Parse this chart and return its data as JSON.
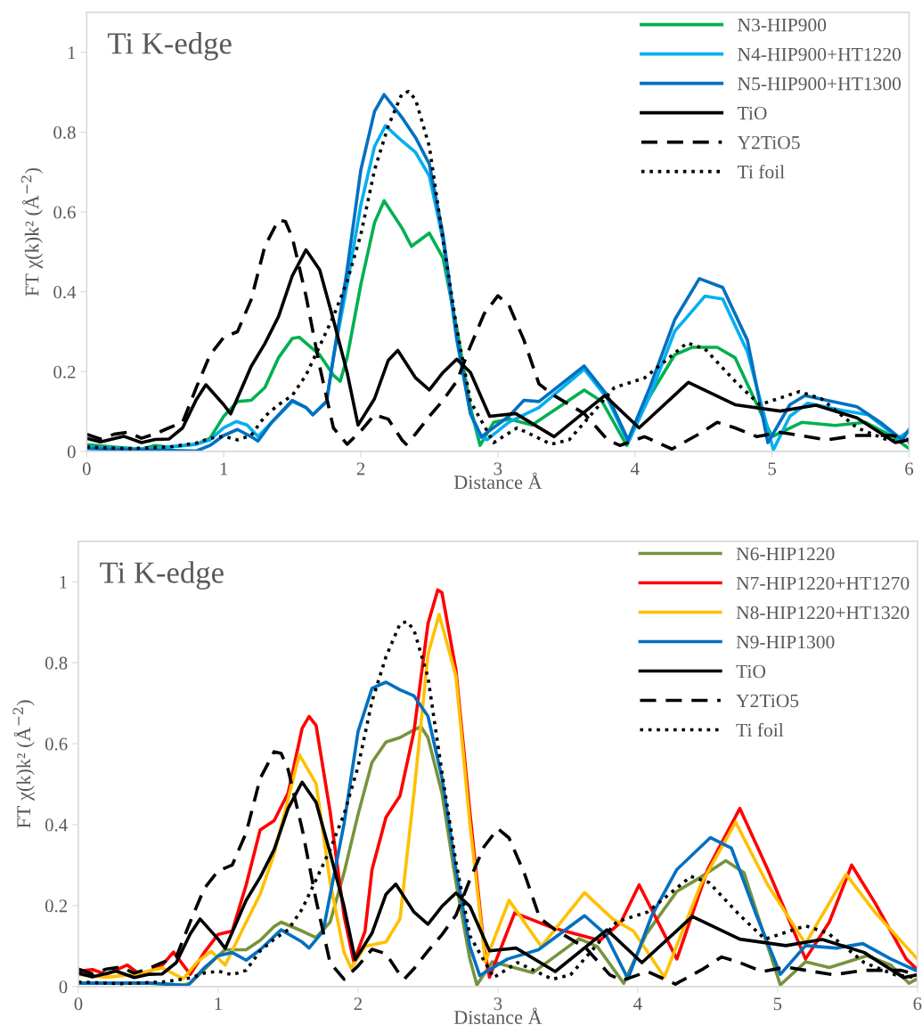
{
  "chart_data": [
    {
      "type": "line",
      "title": "Ti K-edge",
      "xlabel": "Distance Å",
      "ylabel": "FT χ(k)k² (Å$^{−2}$)",
      "xlim": [
        0,
        6
      ],
      "ylim": [
        0,
        1.1
      ],
      "xticks": [
        0,
        1,
        2,
        3,
        4,
        5,
        6
      ],
      "yticks": [
        0,
        0.2,
        0.4,
        0.6,
        0.8,
        1
      ],
      "legend": "top right",
      "grid": false,
      "series": [
        {
          "name": "N3-HIP900",
          "color": "#00b050",
          "line_style": "solid",
          "x": [
            0,
            0.2,
            0.4,
            0.5,
            0.6,
            0.8,
            0.9,
            1.0,
            1.1,
            1.2,
            1.3,
            1.4,
            1.5,
            1.55,
            1.7,
            1.8,
            1.85,
            1.9,
            2.0,
            2.1,
            2.17,
            2.3,
            2.37,
            2.5,
            2.6,
            2.7,
            2.8,
            2.87,
            2.97,
            3.08,
            3.25,
            3.41,
            3.63,
            3.76,
            3.94,
            4.07,
            4.29,
            4.42,
            4.6,
            4.73,
            4.87,
            5.0,
            5.22,
            5.46,
            5.68,
            5.88,
            6.0
          ],
          "values": [
            0.017,
            0.011,
            0.006,
            0.015,
            0.011,
            0.018,
            0.033,
            0.088,
            0.125,
            0.128,
            0.16,
            0.235,
            0.283,
            0.286,
            0.242,
            0.191,
            0.176,
            0.235,
            0.418,
            0.573,
            0.628,
            0.56,
            0.514,
            0.547,
            0.485,
            0.308,
            0.11,
            0.015,
            0.073,
            0.081,
            0.066,
            0.103,
            0.154,
            0.125,
            0.015,
            0.117,
            0.242,
            0.261,
            0.261,
            0.235,
            0.132,
            0.037,
            0.073,
            0.065,
            0.073,
            0.037,
            0.007
          ]
        },
        {
          "name": "N4-HIP900+HT1220",
          "color": "#00b0f0",
          "line_style": "solid",
          "x": [
            0,
            0.4,
            0.6,
            0.8,
            0.9,
            1.0,
            1.09,
            1.17,
            1.25,
            1.35,
            1.5,
            1.6,
            1.65,
            1.75,
            1.8,
            1.9,
            2.0,
            2.1,
            2.18,
            2.3,
            2.4,
            2.5,
            2.6,
            2.7,
            2.8,
            2.87,
            2.92,
            3.08,
            3.3,
            3.63,
            3.8,
            3.95,
            4.11,
            4.29,
            4.51,
            4.64,
            4.82,
            5.01,
            5.13,
            5.26,
            5.51,
            5.7,
            5.92,
            6.0
          ],
          "values": [
            0.011,
            0.006,
            0.011,
            0.018,
            0.029,
            0.059,
            0.075,
            0.066,
            0.037,
            0.073,
            0.125,
            0.11,
            0.092,
            0.125,
            0.235,
            0.418,
            0.617,
            0.764,
            0.816,
            0.778,
            0.749,
            0.69,
            0.529,
            0.279,
            0.095,
            0.037,
            0.029,
            0.073,
            0.11,
            0.206,
            0.132,
            0.022,
            0.14,
            0.301,
            0.389,
            0.382,
            0.25,
            0.004,
            0.088,
            0.121,
            0.103,
            0.092,
            0.033,
            0.051
          ]
        },
        {
          "name": "N5-HIP900+HT1300",
          "color": "#0070c0",
          "line_style": "solid",
          "x": [
            0,
            0.4,
            0.8,
            0.9,
            1.0,
            1.1,
            1.2,
            1.25,
            1.35,
            1.5,
            1.6,
            1.65,
            1.75,
            1.8,
            1.9,
            2.0,
            2.1,
            2.17,
            2.3,
            2.4,
            2.5,
            2.6,
            2.7,
            2.8,
            2.88,
            3.08,
            3.19,
            3.3,
            3.63,
            3.8,
            3.95,
            4.11,
            4.29,
            4.47,
            4.64,
            4.82,
            4.97,
            5.13,
            5.24,
            5.62,
            5.79,
            5.95,
            6.0
          ],
          "values": [
            0.007,
            0.004,
            0.001,
            0.015,
            0.04,
            0.055,
            0.037,
            0.026,
            0.073,
            0.128,
            0.11,
            0.092,
            0.125,
            0.235,
            0.455,
            0.705,
            0.852,
            0.894,
            0.837,
            0.786,
            0.72,
            0.543,
            0.286,
            0.095,
            0.037,
            0.088,
            0.128,
            0.125,
            0.214,
            0.14,
            0.029,
            0.162,
            0.33,
            0.433,
            0.411,
            0.279,
            0.022,
            0.117,
            0.14,
            0.112,
            0.073,
            0.029,
            0.055
          ]
        },
        {
          "name": "TiO",
          "color": "#000000",
          "line_style": "solid",
          "x": [
            0,
            0.1,
            0.27,
            0.4,
            0.5,
            0.6,
            0.7,
            0.8,
            0.87,
            1.0,
            1.05,
            1.2,
            1.3,
            1.4,
            1.5,
            1.6,
            1.7,
            1.8,
            1.9,
            1.98,
            2.1,
            2.2,
            2.27,
            2.4,
            2.5,
            2.6,
            2.7,
            2.8,
            2.94,
            3.13,
            3.41,
            3.78,
            4.03,
            4.39,
            4.73,
            5.06,
            5.32,
            5.62,
            5.9,
            6.0
          ],
          "values": [
            0.033,
            0.024,
            0.038,
            0.022,
            0.03,
            0.031,
            0.059,
            0.13,
            0.167,
            0.117,
            0.094,
            0.213,
            0.27,
            0.338,
            0.44,
            0.505,
            0.455,
            0.33,
            0.198,
            0.066,
            0.132,
            0.228,
            0.253,
            0.184,
            0.154,
            0.198,
            0.231,
            0.198,
            0.088,
            0.095,
            0.037,
            0.14,
            0.059,
            0.173,
            0.117,
            0.101,
            0.116,
            0.084,
            0.022,
            0.029
          ]
        },
        {
          "name": "Y2TiO5",
          "color": "#000000",
          "line_style": "dashed",
          "x": [
            0,
            0.1,
            0.2,
            0.3,
            0.4,
            0.5,
            0.6,
            0.7,
            0.8,
            0.9,
            1.0,
            1.1,
            1.2,
            1.3,
            1.4,
            1.45,
            1.5,
            1.6,
            1.7,
            1.8,
            1.9,
            2.0,
            2.1,
            2.2,
            2.3,
            2.33,
            2.4,
            2.5,
            2.6,
            2.7,
            2.8,
            2.9,
            3.0,
            3.08,
            3.19,
            3.3,
            3.41,
            3.63,
            3.8,
            3.89,
            4.07,
            4.27,
            4.47,
            4.6,
            4.73,
            4.89,
            5.06,
            5.4,
            5.62,
            5.88,
            6.0
          ],
          "values": [
            0.043,
            0.031,
            0.043,
            0.048,
            0.033,
            0.044,
            0.059,
            0.073,
            0.16,
            0.242,
            0.286,
            0.3,
            0.38,
            0.514,
            0.58,
            0.576,
            0.536,
            0.39,
            0.213,
            0.059,
            0.018,
            0.051,
            0.092,
            0.081,
            0.029,
            0.018,
            0.044,
            0.088,
            0.128,
            0.176,
            0.264,
            0.345,
            0.39,
            0.367,
            0.279,
            0.169,
            0.14,
            0.095,
            0.029,
            0.015,
            0.037,
            0.006,
            0.044,
            0.073,
            0.059,
            0.037,
            0.048,
            0.029,
            0.04,
            0.04,
            0.029
          ]
        },
        {
          "name": "Ti foil",
          "color": "#000000",
          "line_style": "dotted",
          "x": [
            0,
            0.3,
            0.6,
            0.8,
            0.9,
            1.0,
            1.1,
            1.2,
            1.3,
            1.4,
            1.5,
            1.6,
            1.7,
            1.8,
            1.9,
            2.0,
            2.1,
            2.2,
            2.3,
            2.35,
            2.4,
            2.5,
            2.6,
            2.7,
            2.8,
            2.97,
            3.14,
            3.39,
            3.52,
            3.67,
            3.85,
            4.07,
            4.25,
            4.38,
            4.51,
            4.73,
            4.91,
            5.2,
            5.36,
            5.62,
            5.84,
            6.0
          ],
          "values": [
            0.011,
            0.007,
            0.011,
            0.021,
            0.033,
            0.038,
            0.029,
            0.04,
            0.088,
            0.117,
            0.14,
            0.191,
            0.264,
            0.338,
            0.426,
            0.543,
            0.705,
            0.815,
            0.896,
            0.902,
            0.881,
            0.764,
            0.529,
            0.308,
            0.125,
            0.022,
            0.059,
            0.018,
            0.029,
            0.088,
            0.16,
            0.184,
            0.235,
            0.272,
            0.257,
            0.176,
            0.117,
            0.15,
            0.132,
            0.059,
            0.029,
            0.022
          ]
        }
      ]
    },
    {
      "type": "line",
      "title": "Ti K-edge",
      "xlabel": "Distance Å",
      "ylabel": "FT χ(k)k² (Å$^{−2}$)",
      "xlim": [
        0,
        6
      ],
      "ylim": [
        0,
        1.1
      ],
      "xticks": [
        0,
        1,
        2,
        3,
        4,
        5,
        6
      ],
      "yticks": [
        0,
        0.2,
        0.4,
        0.6,
        0.8,
        1
      ],
      "legend": "top right",
      "grid": false,
      "series": [
        {
          "name": "N6-HIP1220",
          "color": "#77933c",
          "line_style": "solid",
          "x": [
            0,
            0.5,
            0.75,
            0.8,
            0.9,
            1.0,
            1.05,
            1.2,
            1.3,
            1.4,
            1.45,
            1.6,
            1.7,
            1.8,
            1.9,
            2.0,
            2.1,
            2.2,
            2.3,
            2.4,
            2.45,
            2.5,
            2.6,
            2.7,
            2.8,
            2.85,
            2.96,
            3.25,
            3.58,
            3.71,
            3.9,
            4.06,
            4.28,
            4.45,
            4.63,
            4.76,
            4.93,
            5.02,
            5.2,
            5.37,
            5.64,
            5.81,
            5.94,
            6.0
          ],
          "values": [
            0.008,
            0.008,
            0.004,
            0.008,
            0.042,
            0.076,
            0.091,
            0.091,
            0.114,
            0.148,
            0.159,
            0.137,
            0.121,
            0.159,
            0.281,
            0.425,
            0.554,
            0.604,
            0.615,
            0.634,
            0.642,
            0.615,
            0.478,
            0.258,
            0.068,
            0.004,
            0.061,
            0.034,
            0.118,
            0.099,
            0.008,
            0.129,
            0.235,
            0.27,
            0.311,
            0.281,
            0.099,
            0.004,
            0.061,
            0.047,
            0.076,
            0.053,
            0.008,
            0.019
          ]
        },
        {
          "name": "N7-HIP1220+HT1270",
          "color": "#ff0000",
          "line_style": "solid",
          "x": [
            0,
            0.1,
            0.2,
            0.35,
            0.45,
            0.6,
            0.68,
            0.8,
            0.9,
            1.0,
            1.1,
            1.2,
            1.3,
            1.4,
            1.5,
            1.6,
            1.65,
            1.7,
            1.8,
            1.9,
            1.97,
            2.05,
            2.1,
            2.2,
            2.3,
            2.4,
            2.5,
            2.57,
            2.6,
            2.7,
            2.8,
            2.9,
            2.94,
            3.12,
            3.4,
            3.73,
            3.88,
            4.01,
            4.28,
            4.5,
            4.73,
            4.93,
            5.2,
            5.37,
            5.53,
            5.7,
            5.92,
            6.0
          ],
          "values": [
            0.038,
            0.042,
            0.03,
            0.053,
            0.027,
            0.053,
            0.085,
            0.03,
            0.084,
            0.129,
            0.137,
            0.251,
            0.387,
            0.41,
            0.478,
            0.638,
            0.667,
            0.645,
            0.433,
            0.175,
            0.061,
            0.137,
            0.289,
            0.418,
            0.471,
            0.63,
            0.896,
            0.98,
            0.973,
            0.782,
            0.43,
            0.099,
            0.023,
            0.182,
            0.144,
            0.114,
            0.159,
            0.251,
            0.068,
            0.289,
            0.44,
            0.289,
            0.068,
            0.159,
            0.3,
            0.205,
            0.068,
            0.042
          ]
        },
        {
          "name": "N8-HIP1220+HT1320",
          "color": "#ffc000",
          "line_style": "solid",
          "x": [
            0,
            0.2,
            0.4,
            0.6,
            0.75,
            0.85,
            0.95,
            1.05,
            1.2,
            1.3,
            1.4,
            1.5,
            1.58,
            1.7,
            1.8,
            1.9,
            1.95,
            2.05,
            2.2,
            2.3,
            2.4,
            2.5,
            2.58,
            2.7,
            2.8,
            2.91,
            3.08,
            3.31,
            3.62,
            3.82,
            3.97,
            4.19,
            4.45,
            4.7,
            4.93,
            5.2,
            5.49,
            5.7,
            6.0
          ],
          "values": [
            0.03,
            0.023,
            0.03,
            0.046,
            0.019,
            0.061,
            0.087,
            0.053,
            0.159,
            0.228,
            0.327,
            0.463,
            0.573,
            0.501,
            0.258,
            0.084,
            0.046,
            0.099,
            0.11,
            0.167,
            0.478,
            0.82,
            0.919,
            0.767,
            0.402,
            0.061,
            0.213,
            0.099,
            0.232,
            0.167,
            0.137,
            0.023,
            0.251,
            0.406,
            0.251,
            0.106,
            0.277,
            0.182,
            0.068
          ]
        },
        {
          "name": "N9-HIP1300",
          "color": "#0070c0",
          "line_style": "solid",
          "x": [
            0,
            0.5,
            0.78,
            0.9,
            1.0,
            1.1,
            1.2,
            1.3,
            1.45,
            1.6,
            1.65,
            1.75,
            1.9,
            2.0,
            2.1,
            2.2,
            2.3,
            2.4,
            2.5,
            2.6,
            2.7,
            2.8,
            2.87,
            3.07,
            3.29,
            3.62,
            3.77,
            3.93,
            4.1,
            4.28,
            4.52,
            4.67,
            4.85,
            5.02,
            5.2,
            5.42,
            5.61,
            5.81,
            6.0
          ],
          "values": [
            0.008,
            0.009,
            0.002,
            0.046,
            0.076,
            0.084,
            0.065,
            0.091,
            0.14,
            0.11,
            0.095,
            0.137,
            0.402,
            0.63,
            0.737,
            0.752,
            0.733,
            0.718,
            0.668,
            0.516,
            0.289,
            0.099,
            0.027,
            0.068,
            0.091,
            0.175,
            0.129,
            0.019,
            0.175,
            0.289,
            0.368,
            0.342,
            0.175,
            0.03,
            0.101,
            0.095,
            0.106,
            0.068,
            0.038
          ]
        },
        {
          "name": "TiO",
          "color": "#000000",
          "line_style": "solid",
          "x": [
            0,
            0.1,
            0.27,
            0.4,
            0.5,
            0.6,
            0.7,
            0.8,
            0.87,
            1.0,
            1.05,
            1.2,
            1.3,
            1.4,
            1.5,
            1.6,
            1.7,
            1.8,
            1.9,
            1.98,
            2.1,
            2.2,
            2.27,
            2.4,
            2.5,
            2.6,
            2.7,
            2.8,
            2.94,
            3.13,
            3.41,
            3.78,
            4.03,
            4.39,
            4.73,
            5.06,
            5.32,
            5.62,
            5.9,
            6.0
          ],
          "values": [
            0.033,
            0.024,
            0.038,
            0.022,
            0.03,
            0.031,
            0.059,
            0.13,
            0.167,
            0.117,
            0.094,
            0.213,
            0.27,
            0.338,
            0.44,
            0.505,
            0.455,
            0.33,
            0.198,
            0.066,
            0.132,
            0.228,
            0.253,
            0.184,
            0.154,
            0.198,
            0.231,
            0.198,
            0.088,
            0.095,
            0.037,
            0.14,
            0.059,
            0.173,
            0.117,
            0.101,
            0.116,
            0.084,
            0.022,
            0.029
          ]
        },
        {
          "name": "Y2TiO5",
          "color": "#000000",
          "line_style": "dashed",
          "x": [
            0,
            0.1,
            0.2,
            0.3,
            0.4,
            0.5,
            0.6,
            0.7,
            0.8,
            0.9,
            1.0,
            1.1,
            1.2,
            1.3,
            1.4,
            1.45,
            1.5,
            1.6,
            1.7,
            1.8,
            1.9,
            2.0,
            2.1,
            2.2,
            2.3,
            2.33,
            2.4,
            2.5,
            2.6,
            2.7,
            2.8,
            2.9,
            3.0,
            3.08,
            3.19,
            3.3,
            3.41,
            3.63,
            3.8,
            3.89,
            4.07,
            4.27,
            4.47,
            4.6,
            4.73,
            4.89,
            5.06,
            5.4,
            5.62,
            5.88,
            6.0
          ],
          "values": [
            0.043,
            0.031,
            0.043,
            0.048,
            0.033,
            0.044,
            0.059,
            0.073,
            0.16,
            0.242,
            0.286,
            0.3,
            0.38,
            0.514,
            0.58,
            0.576,
            0.536,
            0.39,
            0.213,
            0.059,
            0.018,
            0.051,
            0.092,
            0.081,
            0.029,
            0.018,
            0.044,
            0.088,
            0.128,
            0.176,
            0.264,
            0.345,
            0.39,
            0.367,
            0.279,
            0.169,
            0.14,
            0.095,
            0.029,
            0.015,
            0.037,
            0.006,
            0.044,
            0.073,
            0.059,
            0.037,
            0.048,
            0.029,
            0.04,
            0.04,
            0.029
          ]
        },
        {
          "name": "Ti foil",
          "color": "#000000",
          "line_style": "dotted",
          "x": [
            0,
            0.3,
            0.6,
            0.8,
            0.9,
            1.0,
            1.1,
            1.2,
            1.3,
            1.4,
            1.5,
            1.6,
            1.7,
            1.8,
            1.9,
            2.0,
            2.1,
            2.2,
            2.3,
            2.35,
            2.4,
            2.5,
            2.6,
            2.7,
            2.8,
            2.97,
            3.14,
            3.39,
            3.52,
            3.67,
            3.85,
            4.07,
            4.25,
            4.38,
            4.51,
            4.73,
            4.91,
            5.2,
            5.36,
            5.62,
            5.84,
            6.0
          ],
          "values": [
            0.011,
            0.007,
            0.011,
            0.021,
            0.033,
            0.038,
            0.029,
            0.04,
            0.088,
            0.117,
            0.14,
            0.191,
            0.264,
            0.338,
            0.426,
            0.543,
            0.705,
            0.815,
            0.896,
            0.902,
            0.881,
            0.764,
            0.529,
            0.308,
            0.125,
            0.022,
            0.059,
            0.018,
            0.029,
            0.088,
            0.16,
            0.184,
            0.235,
            0.272,
            0.257,
            0.176,
            0.117,
            0.15,
            0.132,
            0.059,
            0.029,
            0.022
          ]
        }
      ]
    }
  ]
}
